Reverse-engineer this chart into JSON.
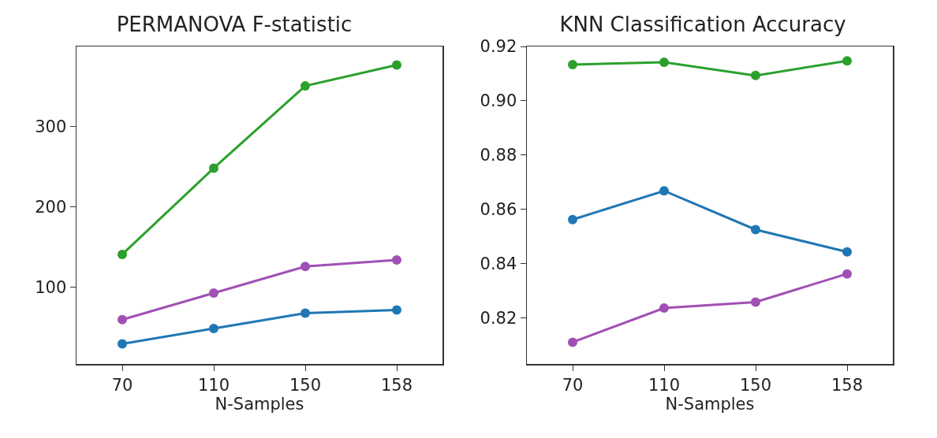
{
  "chart_data": [
    {
      "type": "line",
      "title": "PERMANOVA F-statistic",
      "xlabel": "N-Samples",
      "categories": [
        "70",
        "110",
        "150",
        "158"
      ],
      "ylim": [
        5,
        399
      ],
      "yticks": [
        100,
        200,
        300
      ],
      "grid": false,
      "marker": "circle",
      "line_style": "solid",
      "series": [
        {
          "color": "#2ca02c",
          "values": [
            141,
            248,
            350,
            376
          ]
        },
        {
          "color": "#a050b4",
          "values": [
            60,
            93,
            126,
            134
          ]
        },
        {
          "color": "#1f77b4",
          "values": [
            30,
            49,
            68,
            72
          ]
        }
      ]
    },
    {
      "type": "line",
      "title": "KNN Classification Accuracy",
      "xlabel": "N-Samples",
      "categories": [
        "70",
        "110",
        "150",
        "158"
      ],
      "ylim": [
        0.803,
        0.92
      ],
      "yticks": [
        {
          "value": 0.82,
          "label": "0.82"
        },
        {
          "value": 0.84,
          "label": "0.84"
        },
        {
          "value": 0.86,
          "label": "0.86"
        },
        {
          "value": 0.88,
          "label": "0.88"
        },
        {
          "value": 0.9,
          "label": "0.90"
        },
        {
          "value": 0.92,
          "label": "0.92"
        }
      ],
      "grid": false,
      "marker": "circle",
      "line_style": "solid",
      "series": [
        {
          "color": "#2ca02c",
          "values": [
            0.9133,
            0.9142,
            0.9093,
            0.9147
          ]
        },
        {
          "color": "#1f77b4",
          "values": [
            0.8562,
            0.8668,
            0.8525,
            0.8443
          ]
        },
        {
          "color": "#a050b4",
          "values": [
            0.811,
            0.8236,
            0.8258,
            0.8362
          ]
        }
      ]
    }
  ]
}
